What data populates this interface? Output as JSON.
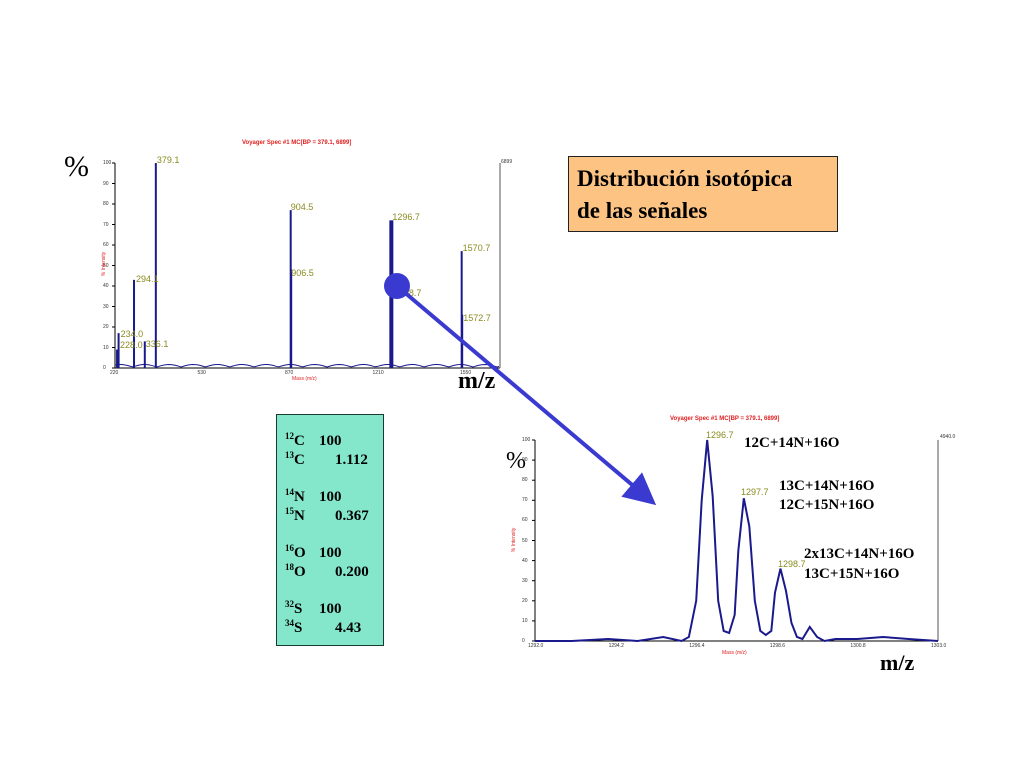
{
  "title_box": {
    "line1": "Distribución isotópica",
    "line2": "de las señales"
  },
  "labels": {
    "percent": "%",
    "mz": "m/z"
  },
  "colors": {
    "spectrum_line": "#1a1a8c",
    "arrow": "#3a3ad0",
    "peak_label": "#8a8a20",
    "title_red": "#e02020",
    "title_box_bg": "#fdc383",
    "iso_box_bg": "#84e6ca"
  },
  "isotopes": [
    {
      "mass": "12",
      "el": "C",
      "value": "100",
      "indent": 0
    },
    {
      "mass": "13",
      "el": "C",
      "value": "1.112",
      "indent": 1
    },
    {
      "mass": "14",
      "el": "N",
      "value": "100",
      "indent": 0
    },
    {
      "mass": "15",
      "el": "N",
      "value": "0.367",
      "indent": 1
    },
    {
      "mass": "16",
      "el": "O",
      "value": "100",
      "indent": 0
    },
    {
      "mass": "18",
      "el": "O",
      "value": "0.200",
      "indent": 1
    },
    {
      "mass": "32",
      "el": "S",
      "value": "100",
      "indent": 0
    },
    {
      "mass": "34",
      "el": "S",
      "value": "4.43",
      "indent": 1
    }
  ],
  "annotations": {
    "a1": "12C+14N+16O",
    "a2a": "13C+14N+16O",
    "a2b": "12C+15N+16O",
    "a3a": "2x13C+14N+16O",
    "a3b": "13C+15N+16O"
  },
  "chart_data": [
    {
      "type": "bar",
      "title": "Voyager Spec #1 MC[BP = 379.1, 6899]",
      "xlabel": "Mass (m/z)",
      "ylabel": "% Intensity",
      "ylim": [
        0,
        100
      ],
      "yticks": [
        "0",
        "10",
        "20",
        "30",
        "40",
        "50",
        "60",
        "70",
        "80",
        "90",
        "100"
      ],
      "xticks": [
        "220",
        "530",
        "870",
        "1210",
        "1550"
      ],
      "max_intensity_label": "6899",
      "categories": [
        "228.0",
        "234.0",
        "294.1",
        "336.1",
        "379.1",
        "904.5",
        "906.5",
        "1296.7",
        "1298.7",
        "1570.7",
        "1572.7"
      ],
      "values": [
        9,
        17,
        43,
        13,
        100,
        77,
        48,
        72,
        38,
        57,
        26
      ]
    },
    {
      "type": "line",
      "title": "Voyager Spec #1 MC[BP = 379.1, 6899]",
      "xlabel": "Mass (m/z)",
      "ylabel": "% Intensity",
      "ylim": [
        0,
        100
      ],
      "xlim": [
        1292.0,
        1303.0
      ],
      "yticks": [
        "0",
        "10",
        "20",
        "30",
        "40",
        "50",
        "60",
        "70",
        "80",
        "90",
        "100"
      ],
      "xticks": [
        "1292.0",
        "1294.2",
        "1296.4",
        "1298.6",
        "1300.8",
        "1303.0"
      ],
      "max_intensity_label": "4940.0",
      "peak_labels": [
        "1296.7",
        "1297.7",
        "1298.7"
      ],
      "x": [
        1292.0,
        1293.0,
        1294.0,
        1294.8,
        1295.5,
        1296.0,
        1296.2,
        1296.4,
        1296.55,
        1296.7,
        1296.85,
        1297.0,
        1297.15,
        1297.3,
        1297.45,
        1297.55,
        1297.7,
        1297.85,
        1298.0,
        1298.15,
        1298.3,
        1298.45,
        1298.55,
        1298.7,
        1298.85,
        1299.0,
        1299.15,
        1299.3,
        1299.5,
        1299.7,
        1299.9,
        1300.2,
        1300.8,
        1301.5,
        1302.2,
        1303.0
      ],
      "values": [
        0,
        0,
        1,
        0,
        2,
        0,
        2,
        20,
        70,
        100,
        72,
        20,
        5,
        4,
        13,
        45,
        71,
        57,
        20,
        5,
        3,
        5,
        24,
        36,
        25,
        9,
        2,
        1,
        7,
        2,
        0,
        1,
        1,
        2,
        1,
        0
      ]
    }
  ]
}
